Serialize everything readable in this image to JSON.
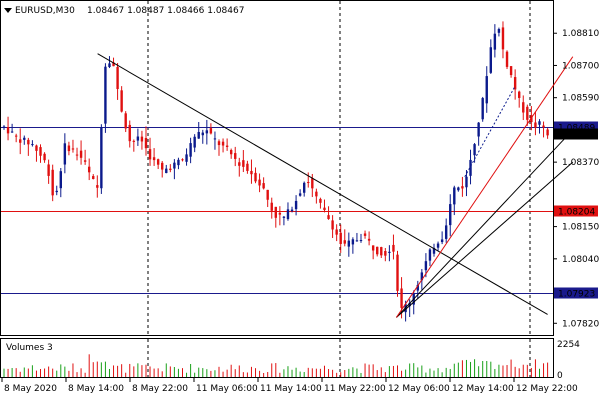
{
  "header": {
    "symbol_timeframe": "EURUSD,M30",
    "ohlc": "1.08467 1.08487 1.08466 1.08467"
  },
  "volumes_panel": {
    "title": "Volumes 3",
    "max_label": "2254",
    "zero_label": "0"
  },
  "colors": {
    "background": "#ffffff",
    "bull": "#0b1a8c",
    "bear": "#e01010",
    "grid": "#000000",
    "trendline_black": "#000000",
    "trendline_red": "#e01010",
    "hline_blue": "#1a1a8c",
    "hline_red": "#e01010",
    "volume_green": "#18a018",
    "volume_red": "#e01010"
  },
  "chart_data": {
    "type": "candlestick",
    "symbol": "EURUSD",
    "timeframe": "M30",
    "ylim": [
      1.0778,
      1.0892
    ],
    "y_ticks": [
      "1.08810",
      "1.08700",
      "1.08590",
      "1.08370",
      "1.08150",
      "1.08040",
      "1.07820"
    ],
    "x_tick_labels": [
      "8 May 2020",
      "8 May 14:00",
      "8 May 22:00",
      "11 May 06:00",
      "11 May 14:00",
      "11 May 22:00",
      "12 May 06:00",
      "12 May 14:00",
      "12 May 22:00"
    ],
    "horizontal_levels": [
      {
        "label": "1.08489",
        "value": 1.08489,
        "color": "#1a1a8c"
      },
      {
        "label": "1.08467",
        "value": 1.08467,
        "color": "#000000"
      },
      {
        "label": "1.08204",
        "value": 1.08204,
        "color": "#e01010"
      },
      {
        "label": "1.07923",
        "value": 1.07923,
        "color": "#1a1a8c"
      }
    ],
    "bars": 135,
    "path": [
      [
        0,
        1.0849
      ],
      [
        4,
        1.0845
      ],
      [
        8,
        1.0843
      ],
      [
        12,
        1.0836
      ],
      [
        14,
        1.0823
      ],
      [
        17,
        1.0843
      ],
      [
        20,
        1.084
      ],
      [
        22,
        1.0838
      ],
      [
        24,
        1.0832
      ],
      [
        26,
        1.0828
      ],
      [
        28,
        1.087
      ],
      [
        30,
        1.0873
      ],
      [
        32,
        1.0858
      ],
      [
        35,
        1.0844
      ],
      [
        38,
        1.0845
      ],
      [
        41,
        1.0838
      ],
      [
        44,
        1.0834
      ],
      [
        47,
        1.0836
      ],
      [
        50,
        1.0838
      ],
      [
        53,
        1.0846
      ],
      [
        56,
        1.0848
      ],
      [
        59,
        1.0844
      ],
      [
        62,
        1.0841
      ],
      [
        65,
        1.0837
      ],
      [
        69,
        1.0833
      ],
      [
        72,
        1.0828
      ],
      [
        75,
        1.0819
      ],
      [
        78,
        1.0818
      ],
      [
        81,
        1.0824
      ],
      [
        84,
        1.0832
      ],
      [
        87,
        1.0824
      ],
      [
        91,
        1.0816
      ],
      [
        94,
        1.0808
      ],
      [
        97,
        1.081
      ],
      [
        100,
        1.0812
      ],
      [
        103,
        1.0807
      ],
      [
        106,
        1.0806
      ],
      [
        108,
        1.0809
      ],
      [
        110,
        1.0786
      ],
      [
        113,
        1.079
      ],
      [
        116,
        1.0799
      ],
      [
        119,
        1.0808
      ],
      [
        122,
        1.0812
      ],
      [
        125,
        1.0828
      ],
      [
        128,
        1.0829
      ],
      [
        131,
        1.0846
      ],
      [
        133,
        1.0858
      ],
      [
        135,
        1.0875
      ],
      [
        137,
        1.0885
      ],
      [
        139,
        1.0873
      ],
      [
        141,
        1.0866
      ],
      [
        143,
        1.0858
      ],
      [
        145,
        1.0853
      ],
      [
        147,
        1.0849
      ],
      [
        149,
        1.085
      ],
      [
        151,
        1.0847
      ]
    ],
    "volumes_max": 2254,
    "trendlines": [
      {
        "color": "#000000",
        "from": {
          "bar": 26,
          "price": 1.0874
        },
        "to": {
          "bar": 151,
          "price": 1.0785
        }
      },
      {
        "color": "#000000",
        "from": {
          "bar": 109,
          "price": 1.0784
        },
        "to": {
          "bar": 158,
          "price": 1.0848
        }
      },
      {
        "color": "#000000",
        "from": {
          "bar": 109,
          "price": 1.0784
        },
        "to": {
          "bar": 158,
          "price": 1.0837
        }
      },
      {
        "color": "#e01010",
        "from": {
          "bar": 109,
          "price": 1.0784
        },
        "to": {
          "bar": 158,
          "price": 1.0873
        }
      },
      {
        "color": "#0b1a8c",
        "from": {
          "bar": 128,
          "price": 1.0832
        },
        "to": {
          "bar": 142,
          "price": 1.0863
        },
        "dashed": true
      }
    ]
  }
}
